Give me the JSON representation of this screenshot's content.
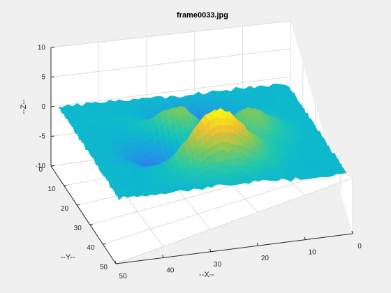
{
  "chart_data": {
    "type": "surface",
    "title": "frame0033.jpg",
    "xlabel": "--X--",
    "ylabel": "--Y--",
    "zlabel": "--Z--",
    "x_ticks": [
      0,
      10,
      20,
      30,
      40,
      50
    ],
    "y_ticks": [
      0,
      10,
      20,
      30,
      40,
      50
    ],
    "z_ticks": [
      -10,
      -5,
      0,
      5,
      10
    ],
    "xlim": [
      0,
      50
    ],
    "ylim": [
      0,
      50
    ],
    "zlim": [
      -10,
      10
    ],
    "grid": true,
    "colormap": "parula",
    "surface": {
      "function": "peaks",
      "grid_size": 49,
      "noise_amplitude": 0.3,
      "z_range": [
        -6.5,
        8.1
      ]
    }
  }
}
